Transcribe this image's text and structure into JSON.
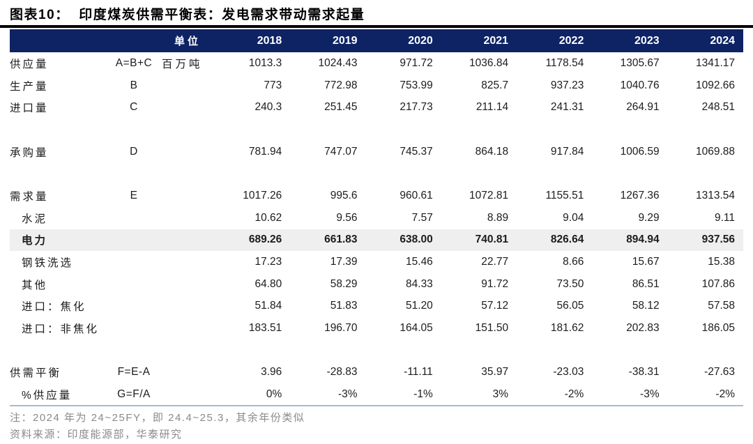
{
  "title": "图表10：  印度煤炭供需平衡表：发电需求带动需求起量",
  "colors": {
    "header_bg": "#0d2364",
    "header_text": "#ffffff",
    "highlight_bg": "#efefef",
    "bottom_rule": "#a9b9d2",
    "title_rule": "#000000",
    "note_text": "#8a8a8a"
  },
  "chart_data": {
    "type": "table",
    "title": "印度煤炭供需平衡表：发电需求带动需求起量",
    "figure_label": "图表10",
    "unit_header": "单位",
    "years": [
      "2018",
      "2019",
      "2020",
      "2021",
      "2022",
      "2023",
      "2024"
    ],
    "rows": [
      {
        "label": "供应量",
        "formula": "A=B+C",
        "unit": "百万吨",
        "indent": false,
        "bold": false,
        "highlight": false,
        "values": [
          "1013.3",
          "1024.43",
          "971.72",
          "1036.84",
          "1178.54",
          "1305.67",
          "1341.17"
        ]
      },
      {
        "label": "生产量",
        "formula": "B",
        "unit": "",
        "indent": false,
        "bold": false,
        "highlight": false,
        "values": [
          "773",
          "772.98",
          "753.99",
          "825.7",
          "937.23",
          "1040.76",
          "1092.66"
        ]
      },
      {
        "label": "进口量",
        "formula": "C",
        "unit": "",
        "indent": false,
        "bold": false,
        "highlight": false,
        "values": [
          "240.3",
          "251.45",
          "217.73",
          "211.14",
          "241.31",
          "264.91",
          "248.51"
        ]
      },
      {
        "blank": true
      },
      {
        "label": "承购量",
        "formula": "D",
        "unit": "",
        "indent": false,
        "bold": false,
        "highlight": false,
        "values": [
          "781.94",
          "747.07",
          "745.37",
          "864.18",
          "917.84",
          "1006.59",
          "1069.88"
        ]
      },
      {
        "blank": true
      },
      {
        "label": "需求量",
        "formula": "E",
        "unit": "",
        "indent": false,
        "bold": false,
        "highlight": false,
        "values": [
          "1017.26",
          "995.6",
          "960.61",
          "1072.81",
          "1155.51",
          "1267.36",
          "1313.54"
        ]
      },
      {
        "label": "水泥",
        "formula": "",
        "unit": "",
        "indent": true,
        "bold": false,
        "highlight": false,
        "values": [
          "10.62",
          "9.56",
          "7.57",
          "8.89",
          "9.04",
          "9.29",
          "9.11"
        ]
      },
      {
        "label": "电力",
        "formula": "",
        "unit": "",
        "indent": true,
        "bold": true,
        "highlight": true,
        "values": [
          "689.26",
          "661.83",
          "638.00",
          "740.81",
          "826.64",
          "894.94",
          "937.56"
        ]
      },
      {
        "label": "钢铁洗选",
        "formula": "",
        "unit": "",
        "indent": true,
        "bold": false,
        "highlight": false,
        "values": [
          "17.23",
          "17.39",
          "15.46",
          "22.77",
          "8.66",
          "15.67",
          "15.38"
        ]
      },
      {
        "label": "其他",
        "formula": "",
        "unit": "",
        "indent": true,
        "bold": false,
        "highlight": false,
        "values": [
          "64.80",
          "58.29",
          "84.33",
          "91.72",
          "73.50",
          "86.51",
          "107.86"
        ]
      },
      {
        "label": "进口：焦化",
        "formula": "",
        "unit": "",
        "indent": true,
        "bold": false,
        "highlight": false,
        "values": [
          "51.84",
          "51.83",
          "51.20",
          "57.12",
          "56.05",
          "58.12",
          "57.58"
        ]
      },
      {
        "label": "进口：非焦化",
        "formula": "",
        "unit": "",
        "indent": true,
        "bold": false,
        "highlight": false,
        "values": [
          "183.51",
          "196.70",
          "164.05",
          "151.50",
          "181.62",
          "202.83",
          "186.05"
        ]
      },
      {
        "blank": true
      },
      {
        "label": "供需平衡",
        "formula": "F=E-A",
        "unit": "",
        "indent": false,
        "bold": false,
        "highlight": false,
        "values": [
          "3.96",
          "-28.83",
          "-11.11",
          "35.97",
          "-23.03",
          "-38.31",
          "-27.63"
        ]
      },
      {
        "label": "%供应量",
        "formula": "G=F/A",
        "unit": "",
        "indent": true,
        "bold": false,
        "highlight": false,
        "values": [
          "0%",
          "-3%",
          "-1%",
          "3%",
          "-2%",
          "-3%",
          "-2%"
        ]
      }
    ],
    "notes": [
      "注：2024 年为 24~25FY，即 24.4~25.3，其余年份类似",
      "资料来源：印度能源部，华泰研究"
    ]
  }
}
